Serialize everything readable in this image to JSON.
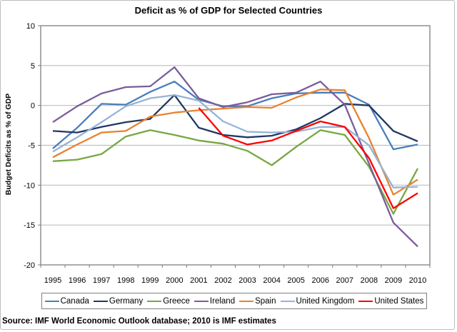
{
  "chart_data": {
    "type": "line",
    "title": "Deficit as % of GDP for Selected Countries",
    "xlabel": "",
    "ylabel": "Budget Deficits as % of GDP",
    "ylim": [
      -20,
      10
    ],
    "yticks": [
      10,
      5,
      0,
      -5,
      -10,
      -15,
      -20
    ],
    "grid": true,
    "legend_position": "bottom",
    "categories": [
      "1995",
      "1996",
      "1997",
      "1998",
      "1999",
      "2000",
      "2001",
      "2002",
      "2003",
      "2004",
      "2005",
      "2006",
      "2007",
      "2008",
      "2009",
      "2010"
    ],
    "series": [
      {
        "name": "Canada",
        "color": "#4a7ebb",
        "values": [
          -5.4,
          -2.8,
          0.2,
          0.1,
          1.7,
          3.0,
          0.7,
          -0.1,
          -0.1,
          0.9,
          1.5,
          1.6,
          1.6,
          0.1,
          -5.5,
          -4.9
        ]
      },
      {
        "name": "Germany",
        "color": "#1f3864",
        "values": [
          -3.2,
          -3.4,
          -2.7,
          -2.1,
          -1.7,
          1.3,
          -2.8,
          -3.7,
          -4.0,
          -3.8,
          -3.0,
          -1.6,
          0.2,
          0.0,
          -3.2,
          -4.5
        ]
      },
      {
        "name": "Greece",
        "color": "#77a742",
        "values": [
          -7.0,
          -6.8,
          -6.1,
          -3.9,
          -3.1,
          -3.7,
          -4.4,
          -4.8,
          -5.7,
          -7.5,
          -5.2,
          -3.1,
          -3.7,
          -7.7,
          -13.6,
          -7.9
        ]
      },
      {
        "name": "Ireland",
        "color": "#7a5c9c",
        "values": [
          -2.1,
          -0.1,
          1.5,
          2.3,
          2.4,
          4.8,
          0.9,
          -0.2,
          0.4,
          1.4,
          1.6,
          3.0,
          0.1,
          -7.3,
          -14.7,
          -17.7
        ]
      },
      {
        "name": "Spain",
        "color": "#e8822f",
        "values": [
          -6.5,
          -4.9,
          -3.4,
          -3.2,
          -1.4,
          -0.9,
          -0.6,
          -0.4,
          -0.2,
          -0.3,
          1.0,
          2.0,
          1.9,
          -4.1,
          -11.2,
          -9.3
        ]
      },
      {
        "name": "United Kingdom",
        "color": "#95b3d7",
        "values": [
          -5.8,
          -4.0,
          -2.1,
          -0.1,
          0.9,
          1.3,
          0.6,
          -2.0,
          -3.3,
          -3.4,
          -3.3,
          -2.7,
          -2.7,
          -5.0,
          -10.3,
          -10.2
        ]
      },
      {
        "name": "United States",
        "color": "#ff0000",
        "values": [
          null,
          null,
          null,
          null,
          null,
          null,
          -0.3,
          -3.8,
          -4.9,
          -4.4,
          -3.2,
          -2.0,
          -2.7,
          -6.6,
          -12.9,
          -11.0
        ]
      }
    ],
    "source": "Source: IMF World Economic Outlook database; 2010 is IMF estimates"
  }
}
